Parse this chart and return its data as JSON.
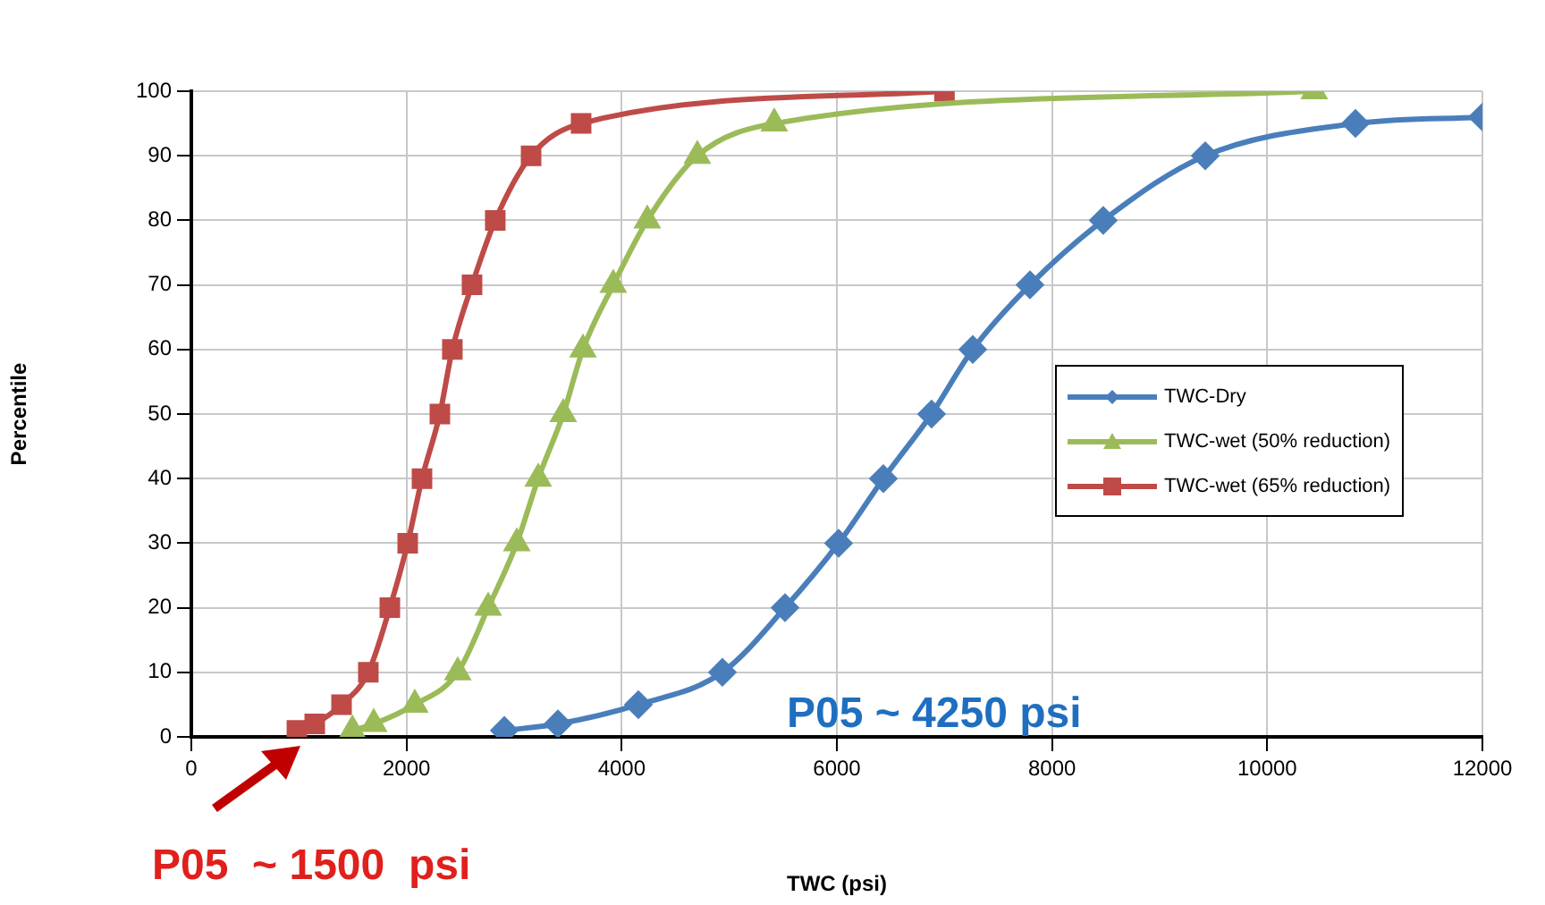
{
  "chart_data": {
    "type": "line",
    "xlabel": "TWC (psi)",
    "ylabel": "Percentile",
    "xlim": [
      0,
      12000
    ],
    "xticks": [
      0,
      2000,
      4000,
      6000,
      8000,
      10000,
      12000
    ],
    "ylim": [
      0,
      100
    ],
    "yticks": [
      0,
      10,
      20,
      30,
      40,
      50,
      60,
      70,
      80,
      90,
      100
    ],
    "grid": true,
    "legend": "right",
    "line_style": "solid",
    "series": [
      {
        "name": "TWC-Dry",
        "color": "#4a7ebb",
        "marker": "diamond",
        "x": [
          2909,
          3407,
          4155,
          4936,
          5518,
          6016,
          6432,
          6880,
          7263,
          7795,
          8476,
          9424,
          10820,
          12000
        ],
        "values": [
          1,
          2,
          5,
          10,
          20,
          30,
          40,
          50,
          60,
          70,
          80,
          90,
          95,
          96
        ]
      },
      {
        "name": "TWC-wet (50% reduction)",
        "color": "#9bbb59",
        "marker": "triangle",
        "x": [
          1497,
          1695,
          2077,
          2476,
          2759,
          3025,
          3224,
          3457,
          3640,
          3922,
          4238,
          4703,
          5418,
          10437
        ],
        "values": [
          1,
          2,
          5,
          10,
          20,
          30,
          40,
          50,
          60,
          70,
          80,
          90,
          95,
          100
        ]
      },
      {
        "name": "TWC-wet (65% reduction)",
        "color": "#be4b48",
        "marker": "square",
        "x": [
          981,
          1147,
          1396,
          1645,
          1845,
          2011,
          2144,
          2310,
          2426,
          2609,
          2825,
          3158,
          3623,
          7000
        ],
        "values": [
          1,
          2,
          5,
          10,
          20,
          30,
          40,
          50,
          60,
          70,
          80,
          90,
          95,
          100
        ]
      }
    ],
    "annotations": [
      "P05 ~ 4250 psi",
      "P05  ~ 1500  psi"
    ]
  }
}
